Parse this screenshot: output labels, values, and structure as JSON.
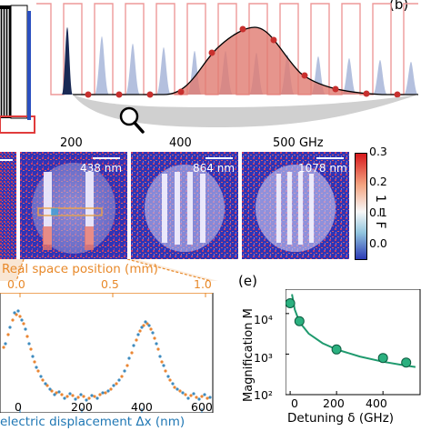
{
  "colors": {
    "fit_green": "#1f9a6e",
    "dot_green": "#2bb07f",
    "orange_axis": "#e8892a",
    "blue_axis": "#1f77b4",
    "series_orange": "#e87a1d",
    "series_blue": "#2a7fb8",
    "curve_red": "#d9534f",
    "curve_fill": "#e07a70",
    "pulse_blue": "#a7b6d9"
  },
  "panel_b": {
    "label": "(b)"
  },
  "panel_e": {
    "label": "(e)"
  },
  "images": {
    "columns": [
      "200",
      "400",
      "500 GHz"
    ],
    "scale_labels": [
      "438 nm",
      "864 nm",
      "1078 nm"
    ]
  },
  "colorbar": {
    "ticks": [
      "0.3",
      "0.2",
      "0.1",
      "0.0"
    ],
    "label": "1 − F"
  },
  "profile": {
    "top_axis_label": "Real space position (mm)",
    "top_ticks": [
      "0.0",
      "0.5",
      "1.0"
    ],
    "bottom_axis_label": "electric displacement Δx (nm)",
    "bottom_ticks": [
      "0",
      "200",
      "400",
      "600"
    ]
  },
  "chart_data": {
    "type": "scatter",
    "title": "",
    "xlabel": "Detuning δ (GHz)",
    "ylabel": "Magnification M",
    "yscale": "log",
    "xlim": [
      -20,
      560
    ],
    "ylim": [
      100,
      40000
    ],
    "x_ticks": [
      "0",
      "200",
      "400"
    ],
    "y_ticks": [
      "10⁴",
      "10³",
      "10²"
    ],
    "series": [
      {
        "x": [
          0,
          40,
          200,
          400,
          500
        ],
        "y": [
          18000,
          6500,
          1300,
          800,
          620
        ]
      }
    ],
    "fit": {
      "x": [
        8,
        20,
        40,
        80,
        140,
        200,
        300,
        400,
        500,
        540
      ],
      "y": [
        30000,
        12500,
        6200,
        3200,
        1850,
        1300,
        870,
        650,
        520,
        480
      ]
    }
  }
}
